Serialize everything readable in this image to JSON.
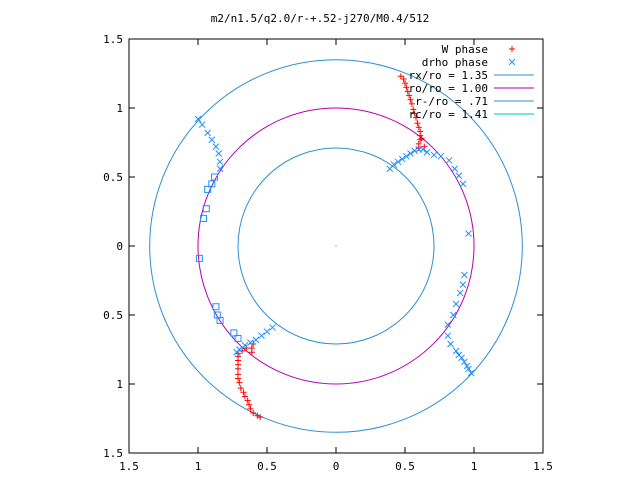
{
  "chart_data": {
    "type": "scatter",
    "title": "m2/n1.5/q2.0/r-+.52-j270/M0.4/512",
    "xlim": [
      -1.5,
      1.5
    ],
    "ylim": [
      -1.5,
      1.5
    ],
    "xtick_labels": [
      "1.5",
      "1",
      "0.5",
      "0",
      "0.5",
      "1",
      "1.5"
    ],
    "ytick_labels": [
      "1.5",
      "1",
      "0.5",
      "0",
      "0.5",
      "1",
      "1.5"
    ],
    "grid": false,
    "legend_position": "top-right",
    "colors": {
      "w_phase": "#ff0000",
      "drho_phase": "#1e90ff",
      "rx_circle": "#2c8fd6",
      "ro_circle": "#b400b4",
      "rminus_circle": "#2c8fd6",
      "rc_circle": "#00bfd0"
    },
    "circles": [
      {
        "name": "rx/ro = 1.35",
        "radius": 1.35
      },
      {
        "name": "ro/ro = 1.00",
        "radius": 1.0
      },
      {
        "name": "r-/ro = .71",
        "radius": 0.71
      },
      {
        "name": "rc/ro = 1.41",
        "radius": 1.41
      }
    ],
    "series": [
      {
        "name": "W phase",
        "marker": "plus",
        "points": [
          [
            0.6,
            0.71
          ],
          [
            0.6,
            0.74
          ],
          [
            0.61,
            0.77
          ],
          [
            0.61,
            0.8
          ],
          [
            0.61,
            0.83
          ],
          [
            0.6,
            0.86
          ],
          [
            0.59,
            0.89
          ],
          [
            0.58,
            0.93
          ],
          [
            0.57,
            0.96
          ],
          [
            0.56,
            0.99
          ],
          [
            0.55,
            1.03
          ],
          [
            0.54,
            1.06
          ],
          [
            0.53,
            1.09
          ],
          [
            0.52,
            1.12
          ],
          [
            0.51,
            1.15
          ],
          [
            0.5,
            1.18
          ],
          [
            0.49,
            1.21
          ],
          [
            0.47,
            1.23
          ],
          [
            0.64,
            0.72
          ],
          [
            0.62,
            0.78
          ],
          [
            -0.6,
            -0.71
          ],
          [
            -0.61,
            -0.74
          ],
          [
            -0.61,
            -0.77
          ],
          [
            -0.71,
            -0.8
          ],
          [
            -0.71,
            -0.83
          ],
          [
            -0.71,
            -0.86
          ],
          [
            -0.71,
            -0.89
          ],
          [
            -0.71,
            -0.93
          ],
          [
            -0.71,
            -0.96
          ],
          [
            -0.7,
            -0.99
          ],
          [
            -0.69,
            -1.03
          ],
          [
            -0.67,
            -1.06
          ],
          [
            -0.66,
            -1.09
          ],
          [
            -0.64,
            -1.12
          ],
          [
            -0.63,
            -1.15
          ],
          [
            -0.62,
            -1.18
          ],
          [
            -0.6,
            -1.21
          ],
          [
            -0.57,
            -1.23
          ],
          [
            -0.55,
            -1.24
          ],
          [
            -0.71,
            -0.78
          ],
          [
            -0.65,
            -0.74
          ],
          [
            -0.68,
            -0.76
          ]
        ]
      },
      {
        "name": "drho phase",
        "marker": "cross",
        "points": [
          [
            0.39,
            0.56
          ],
          [
            0.42,
            0.59
          ],
          [
            0.45,
            0.61
          ],
          [
            0.48,
            0.63
          ],
          [
            0.51,
            0.65
          ],
          [
            0.54,
            0.67
          ],
          [
            0.57,
            0.69
          ],
          [
            0.6,
            0.7
          ],
          [
            0.63,
            0.7
          ],
          [
            0.66,
            0.68
          ],
          [
            0.71,
            0.66
          ],
          [
            0.76,
            0.65
          ],
          [
            0.82,
            0.62
          ],
          [
            0.86,
            0.56
          ],
          [
            0.89,
            0.51
          ],
          [
            0.92,
            0.45
          ],
          [
            0.96,
            0.09
          ],
          [
            0.93,
            -0.21
          ],
          [
            0.92,
            -0.28
          ],
          [
            0.9,
            -0.34
          ],
          [
            0.87,
            -0.42
          ],
          [
            0.85,
            -0.5
          ],
          [
            0.81,
            -0.57
          ],
          [
            0.81,
            -0.65
          ],
          [
            0.83,
            -0.71
          ],
          [
            0.87,
            -0.76
          ],
          [
            0.91,
            -0.81
          ],
          [
            0.95,
            -0.87
          ],
          [
            0.98,
            -0.92
          ],
          [
            0.96,
            -0.89
          ],
          [
            0.93,
            -0.84
          ],
          [
            0.89,
            -0.79
          ],
          [
            -0.46,
            -0.59
          ],
          [
            -0.5,
            -0.62
          ],
          [
            -0.54,
            -0.65
          ],
          [
            -0.58,
            -0.68
          ],
          [
            -0.62,
            -0.7
          ],
          [
            -0.66,
            -0.72
          ],
          [
            -0.7,
            -0.75
          ],
          [
            -0.72,
            -0.77
          ],
          [
            -1.0,
            0.92
          ],
          [
            -0.97,
            0.88
          ],
          [
            -0.93,
            0.82
          ],
          [
            -0.9,
            0.77
          ],
          [
            -0.87,
            0.72
          ],
          [
            -0.85,
            0.67
          ],
          [
            -0.84,
            0.61
          ],
          [
            -0.84,
            0.56
          ]
        ]
      },
      {
        "name": "drho phase",
        "marker": "square",
        "points": [
          [
            -0.88,
            0.5
          ],
          [
            -0.9,
            0.45
          ],
          [
            -0.93,
            0.41
          ],
          [
            -0.94,
            0.27
          ],
          [
            -0.96,
            0.2
          ],
          [
            -0.99,
            -0.09
          ],
          [
            -0.87,
            -0.44
          ],
          [
            -0.86,
            -0.5
          ],
          [
            -0.84,
            -0.54
          ],
          [
            -0.74,
            -0.63
          ],
          [
            -0.71,
            -0.67
          ]
        ]
      }
    ]
  }
}
